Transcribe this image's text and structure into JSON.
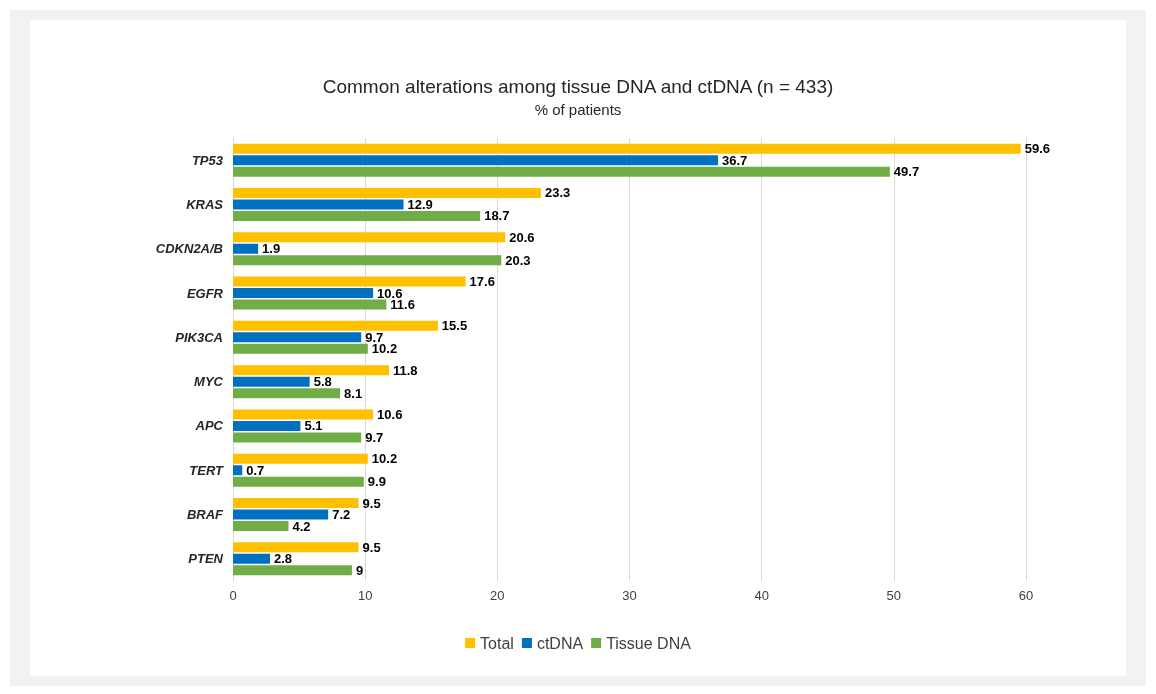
{
  "chart_data": {
    "type": "bar",
    "orientation": "horizontal",
    "title": "Common alterations among tissue DNA and ctDNA (n = 433)",
    "subtitle": "% of patients",
    "categories": [
      "TP53",
      "KRAS",
      "CDKN2A/B",
      "EGFR",
      "PIK3CA",
      "MYC",
      "APC",
      "TERT",
      "BRAF",
      "PTEN"
    ],
    "series": [
      {
        "name": "Total",
        "color": "#ffc000",
        "values": [
          59.6,
          23.3,
          20.6,
          17.6,
          15.5,
          11.8,
          10.6,
          10.2,
          9.5,
          9.5
        ]
      },
      {
        "name": "ctDNA",
        "color": "#0070c0",
        "values": [
          36.7,
          12.9,
          1.9,
          10.6,
          9.7,
          5.8,
          5.1,
          0.7,
          7.2,
          2.8
        ]
      },
      {
        "name": "Tissue DNA",
        "color": "#70ad47",
        "values": [
          49.7,
          18.7,
          20.3,
          11.6,
          10.2,
          8.1,
          9.7,
          9.9,
          4.2,
          9
        ]
      }
    ],
    "xlim": [
      0,
      60
    ],
    "xticks": [
      0,
      10,
      20,
      30,
      40,
      50,
      60
    ],
    "grid": "x",
    "legend": "bottom",
    "data_labels": true
  }
}
